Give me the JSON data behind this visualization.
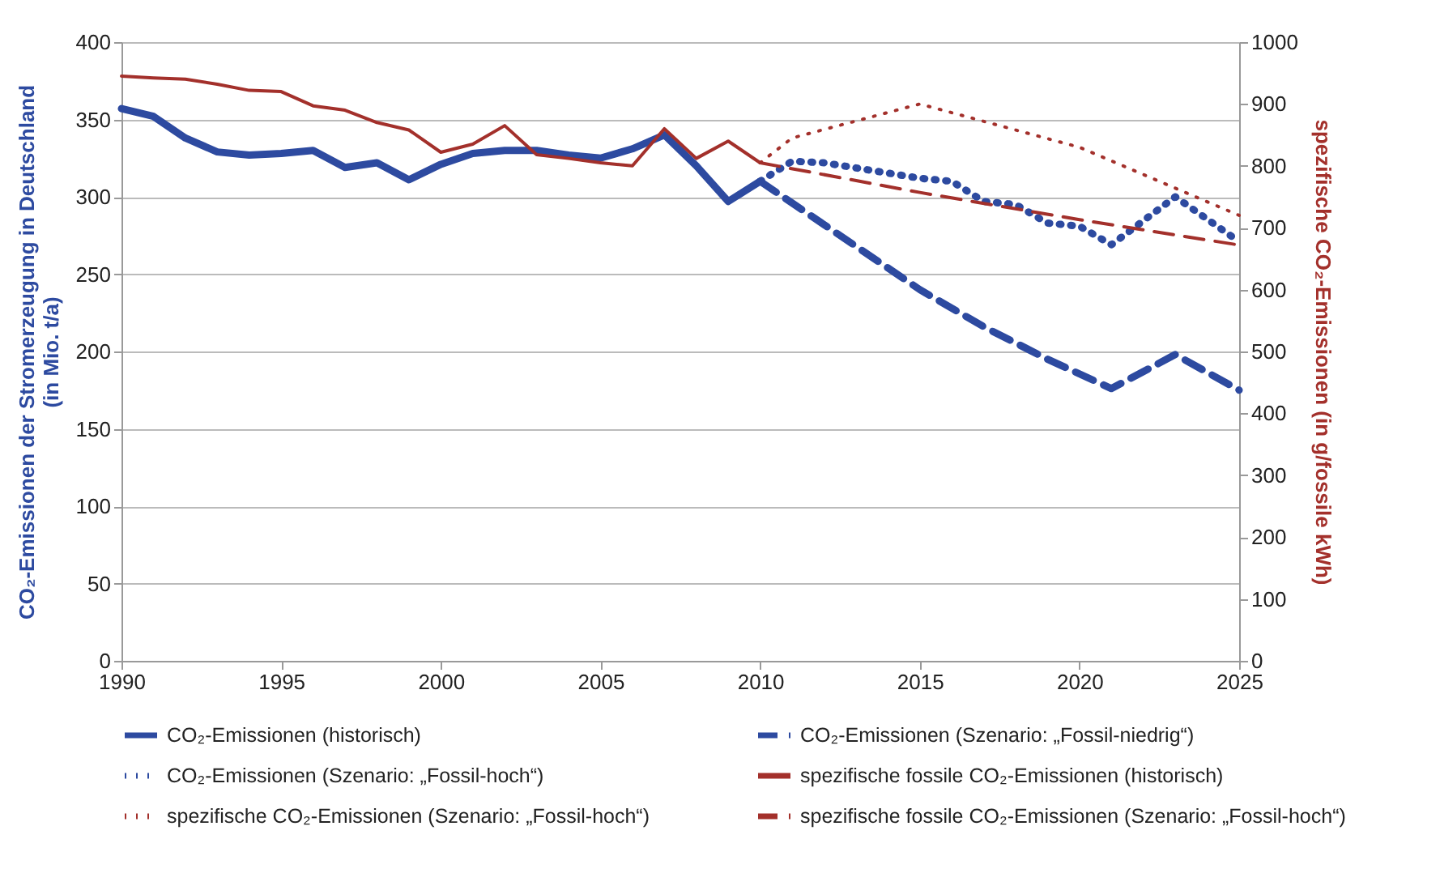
{
  "chart_data": {
    "type": "line",
    "ylabel": "CO₂-Emissionen der Stromerzeugung in Deutschland\n(in Mio. t/a)",
    "y2label": "spezifische CO₂-Emissionen (in g/fossile kWh)",
    "xlim": [
      1990,
      2025
    ],
    "xticks": [
      1990,
      1995,
      2000,
      2005,
      2010,
      2015,
      2020,
      2025
    ],
    "ylim": [
      0,
      400
    ],
    "yticks": [
      0,
      50,
      100,
      150,
      200,
      250,
      300,
      350,
      400
    ],
    "y2lim": [
      0,
      1000
    ],
    "y2ticks": [
      0,
      100,
      200,
      300,
      400,
      500,
      600,
      700,
      800,
      900,
      {
        "value": 1000,
        "label": "1000"
      }
    ],
    "grid": "y",
    "legend": "bottom",
    "series": [
      {
        "name": "CO₂-Emissionen (historisch)",
        "color": "#2d4aa0",
        "line_style": "solid",
        "x": [
          1990,
          1991,
          1992,
          1993,
          1994,
          1995,
          1996,
          1997,
          1998,
          1999,
          2000,
          2001,
          2002,
          2003,
          2004,
          2005,
          2006,
          2007,
          2008,
          2009,
          2010
        ],
        "values": [
          357,
          352,
          338,
          329,
          327,
          328,
          330,
          319,
          322,
          311,
          321,
          328,
          330,
          330,
          327,
          325,
          331,
          340,
          320,
          297,
          310
        ]
      },
      {
        "name": "CO₂-Emissionen (Szenario: „Fossil-niedrig“)",
        "color": "#2d4aa0",
        "line_style": "dashed",
        "x": [
          2010,
          2015,
          2017,
          2019,
          2021,
          2023,
          2025
        ],
        "values": [
          310,
          240,
          216,
          195,
          176,
          198,
          175
        ]
      },
      {
        "name": "CO₂-Emissionen (Szenario: „Fossil-hoch“)",
        "color": "#2d4aa0",
        "line_style": "dotted",
        "x": [
          2010,
          2011,
          2012,
          2015,
          2016,
          2017,
          2018,
          2019,
          2020,
          2021,
          2023,
          2025
        ],
        "values": [
          310,
          323,
          322,
          312,
          310,
          297,
          295,
          283,
          281,
          269,
          300,
          271
        ]
      },
      {
        "name": "spezifische fossile CO₂-Emissionen (historisch)",
        "color": "#a3302b",
        "line_style": "solid",
        "axis": "y2",
        "x": [
          1990,
          1991,
          1992,
          1993,
          1994,
          1995,
          1996,
          1997,
          1998,
          1999,
          2000,
          2001,
          2002,
          2003,
          2004,
          2005,
          2006,
          2007,
          2008,
          2009,
          2010
        ],
        "values": [
          945,
          942,
          940,
          932,
          922,
          920,
          897,
          890,
          870,
          858,
          822,
          835,
          865,
          818,
          812,
          805,
          800,
          860,
          812,
          840,
          805
        ]
      },
      {
        "name": "spezifische CO₂-Emissionen (Szenario: „Fossil-hoch“)",
        "color": "#a3302b",
        "line_style": "dotted",
        "axis": "y2",
        "x": [
          2010,
          2011,
          2015,
          2020,
          2025
        ],
        "values": [
          805,
          845,
          900,
          830,
          720
        ]
      },
      {
        "name": "spezifische fossile CO₂-Emissionen (Szenario: „Fossil-hoch“)",
        "color": "#a3302b",
        "line_style": "dashed",
        "axis": "y2",
        "x": [
          2010,
          2015,
          2020,
          2025
        ],
        "values": [
          805,
          757,
          713,
          672
        ]
      }
    ]
  }
}
